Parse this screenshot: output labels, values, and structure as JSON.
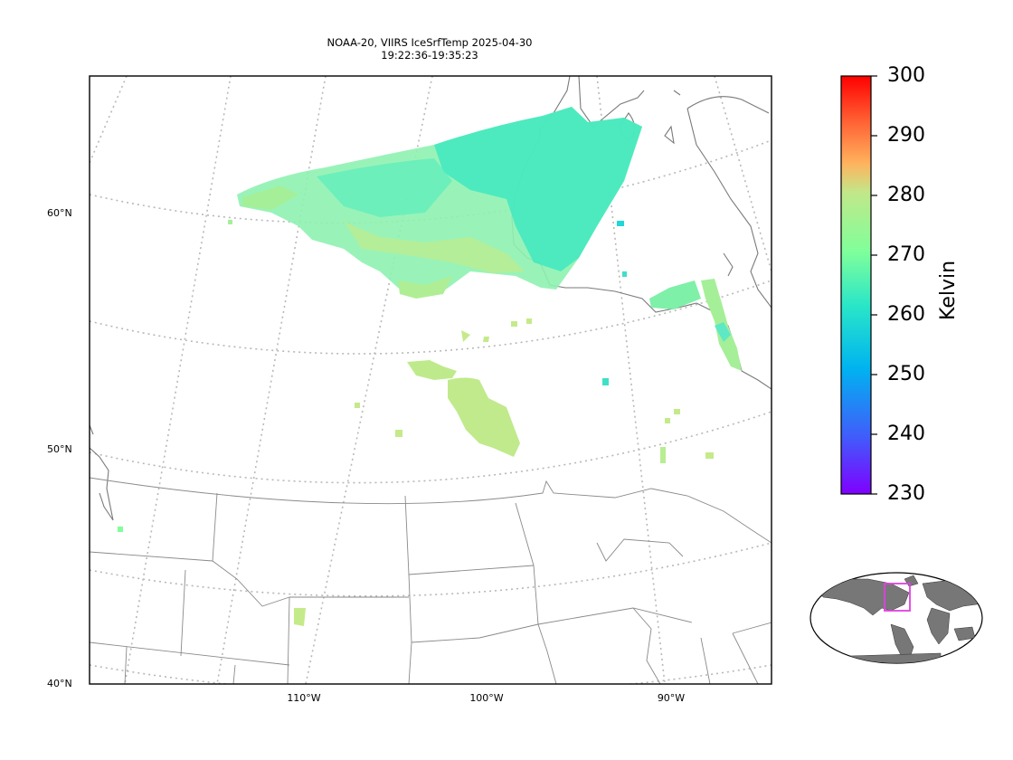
{
  "figure": {
    "title_line1": "NOAA-20, VIIRS IceSrfTemp 2025-04-30",
    "title_line2": "19:22:36-19:35:23"
  },
  "map": {
    "projection": "conic",
    "gridlines": "dotted",
    "lat_labels": [
      "60°N",
      "50°N",
      "40°N"
    ],
    "lon_labels": [
      "110°W",
      "100°W",
      "90°W"
    ],
    "data_color": "#7ef0a8"
  },
  "colorbar": {
    "label": "Kelvin",
    "min": 230,
    "max": 300,
    "ticks": [
      "300",
      "290",
      "280",
      "270",
      "260",
      "250",
      "240",
      "230"
    ],
    "colormap": [
      "#7f00ff",
      "#3f5efb",
      "#00b3f0",
      "#29e6c8",
      "#80ff9a",
      "#c0e88a",
      "#ffb35e",
      "#ff5a30",
      "#ff0000"
    ]
  },
  "inset": {
    "type": "world-locator",
    "highlight_color": "#e040e0",
    "land_color": "#777777"
  }
}
